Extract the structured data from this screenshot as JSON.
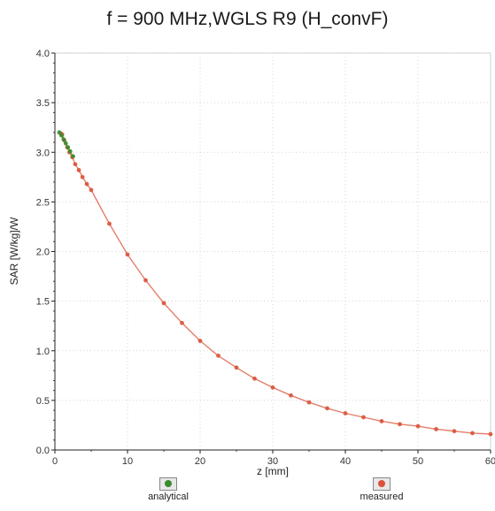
{
  "chart_data": {
    "type": "line",
    "title": "f = 900 MHz,WGLS R9 (H_convF)",
    "xlabel": "z [mm]",
    "ylabel": "SAR [W/kg]/W",
    "xlim": [
      0,
      60
    ],
    "ylim": [
      0,
      4.0
    ],
    "x_ticks": [
      "0",
      "10",
      "20",
      "30",
      "40",
      "50",
      "60"
    ],
    "y_ticks": [
      "0.0",
      "0.5",
      "1.0",
      "1.5",
      "2.0",
      "2.5",
      "3.0",
      "3.5",
      "4.0"
    ],
    "grid": true,
    "legend_placement": "bottom",
    "series": [
      {
        "name": "analytical",
        "color": "#3a8c2c",
        "x": [
          0.6,
          0.9,
          1.2,
          1.5,
          1.8,
          2.1,
          2.5
        ],
        "y": [
          3.2,
          3.17,
          3.13,
          3.09,
          3.05,
          3.01,
          2.96
        ]
      },
      {
        "name": "measured",
        "color": "#d9533a",
        "x": [
          0.8,
          1.0,
          1.3,
          1.7,
          2.0,
          2.4,
          2.8,
          3.3,
          3.8,
          4.4,
          5.0,
          7.5,
          10.0,
          12.5,
          15.0,
          17.5,
          20.0,
          22.5,
          25.0,
          27.5,
          30.0,
          32.5,
          35.0,
          37.5,
          40.0,
          42.5,
          45.0,
          47.5,
          50.0,
          52.5,
          55.0,
          57.5,
          60.0
        ],
        "y": [
          3.19,
          3.18,
          3.12,
          3.05,
          3.0,
          2.95,
          2.88,
          2.82,
          2.75,
          2.68,
          2.62,
          2.28,
          1.97,
          1.71,
          1.48,
          1.28,
          1.1,
          0.95,
          0.83,
          0.72,
          0.63,
          0.55,
          0.48,
          0.42,
          0.37,
          0.33,
          0.29,
          0.26,
          0.24,
          0.21,
          0.19,
          0.17,
          0.16
        ]
      }
    ]
  }
}
